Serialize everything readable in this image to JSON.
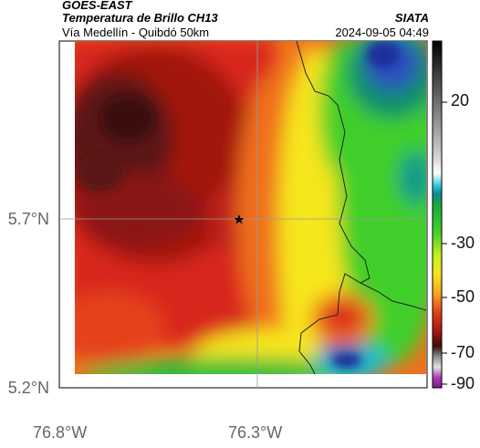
{
  "header": {
    "satellite": "GOES-EAST",
    "product": "Temperatura de Brillo CH13",
    "region": "Vía Medellín - Quibdó 50km",
    "agency": "SIATA",
    "datetime": "2024-09-05 04:49"
  },
  "axes": {
    "lat_ticks": [
      "5.7°N",
      "5.2°N"
    ],
    "lon_ticks": [
      "76.8°W",
      "76.3°W"
    ]
  },
  "colorbar": {
    "ticks": [
      "20",
      "-30",
      "-50",
      "-70",
      "-90"
    ]
  },
  "map": {
    "marker": "star-icon",
    "colors": {
      "very_cold": "#3a0f10",
      "dark_red": "#8b1612",
      "red": "#d8261a",
      "orange": "#f0701e",
      "yellow": "#f6e61e",
      "green": "#3fcf2a",
      "teal": "#13bfae",
      "blue": "#2b4fbf",
      "magenta": "#b13ab1"
    }
  }
}
